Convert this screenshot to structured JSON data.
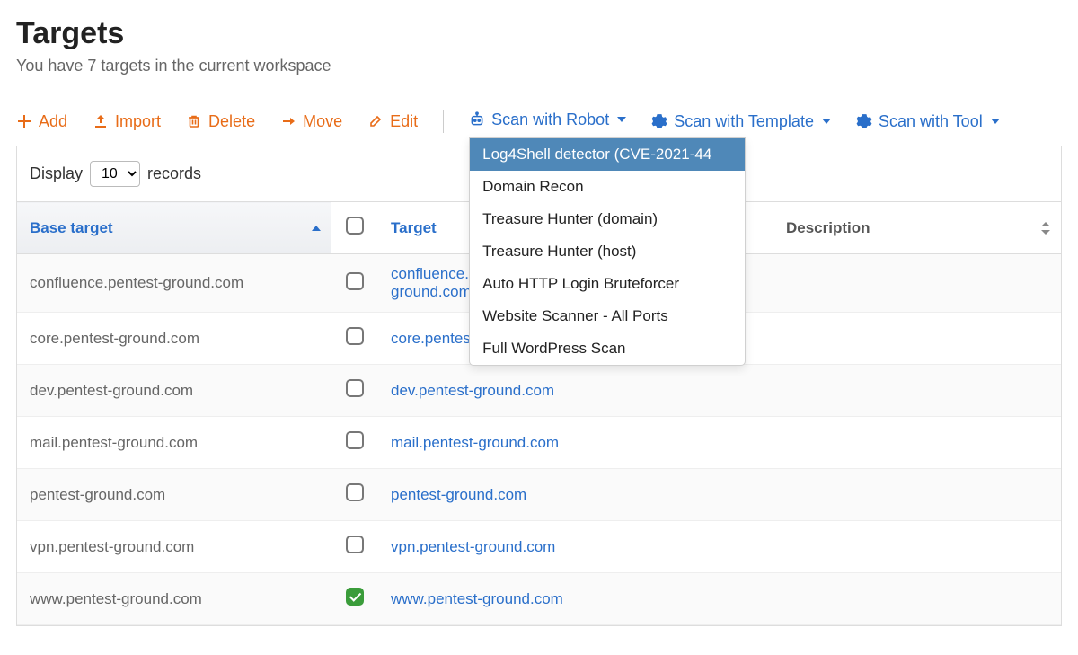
{
  "colors": {
    "primary_orange": "#e86c18",
    "primary_blue": "#2a6fca",
    "dropdown_selected_bg": "#4f88b8",
    "text_muted": "#666666",
    "border": "#dddddd",
    "row_stripe": "#fafafa",
    "checkbox_checked": "#3a9c3a"
  },
  "header": {
    "title": "Targets",
    "subtitle": "You have 7 targets in the current workspace"
  },
  "toolbar": {
    "add": "Add",
    "import": "Import",
    "delete": "Delete",
    "move": "Move",
    "edit": "Edit",
    "scan_robot": "Scan with Robot",
    "scan_template": "Scan with Template",
    "scan_tool": "Scan with Tool"
  },
  "robot_dropdown": {
    "items": [
      {
        "label": "Log4Shell detector (CVE-2021-44",
        "selected": true
      },
      {
        "label": "Domain Recon",
        "selected": false
      },
      {
        "label": "Treasure Hunter (domain)",
        "selected": false
      },
      {
        "label": "Treasure Hunter (host)",
        "selected": false
      },
      {
        "label": "Auto HTTP Login Bruteforcer",
        "selected": false
      },
      {
        "label": "Website Scanner - All Ports",
        "selected": false
      },
      {
        "label": "Full WordPress Scan",
        "selected": false
      }
    ]
  },
  "table": {
    "display_label_pre": "Display",
    "display_label_post": "records",
    "page_size": "10",
    "columns": {
      "base": "Base target",
      "target": "Target",
      "description": "Description"
    },
    "rows": [
      {
        "base": "confluence.pentest-ground.com",
        "target": "confluence.pentest-ground.com",
        "target_wrap": true,
        "checked": false,
        "description": ""
      },
      {
        "base": "core.pentest-ground.com",
        "target": "core.pentest-ground.com",
        "target_truncated": "core.pente",
        "checked": false,
        "description": ""
      },
      {
        "base": "dev.pentest-ground.com",
        "target": "dev.pentest-ground.com",
        "checked": false,
        "description": ""
      },
      {
        "base": "mail.pentest-ground.com",
        "target": "mail.pentest-ground.com",
        "checked": false,
        "description": ""
      },
      {
        "base": "pentest-ground.com",
        "target": "pentest-ground.com",
        "checked": false,
        "description": ""
      },
      {
        "base": "vpn.pentest-ground.com",
        "target": "vpn.pentest-ground.com",
        "checked": false,
        "description": ""
      },
      {
        "base": "www.pentest-ground.com",
        "target": "www.pentest-ground.com",
        "checked": true,
        "description": ""
      }
    ]
  }
}
